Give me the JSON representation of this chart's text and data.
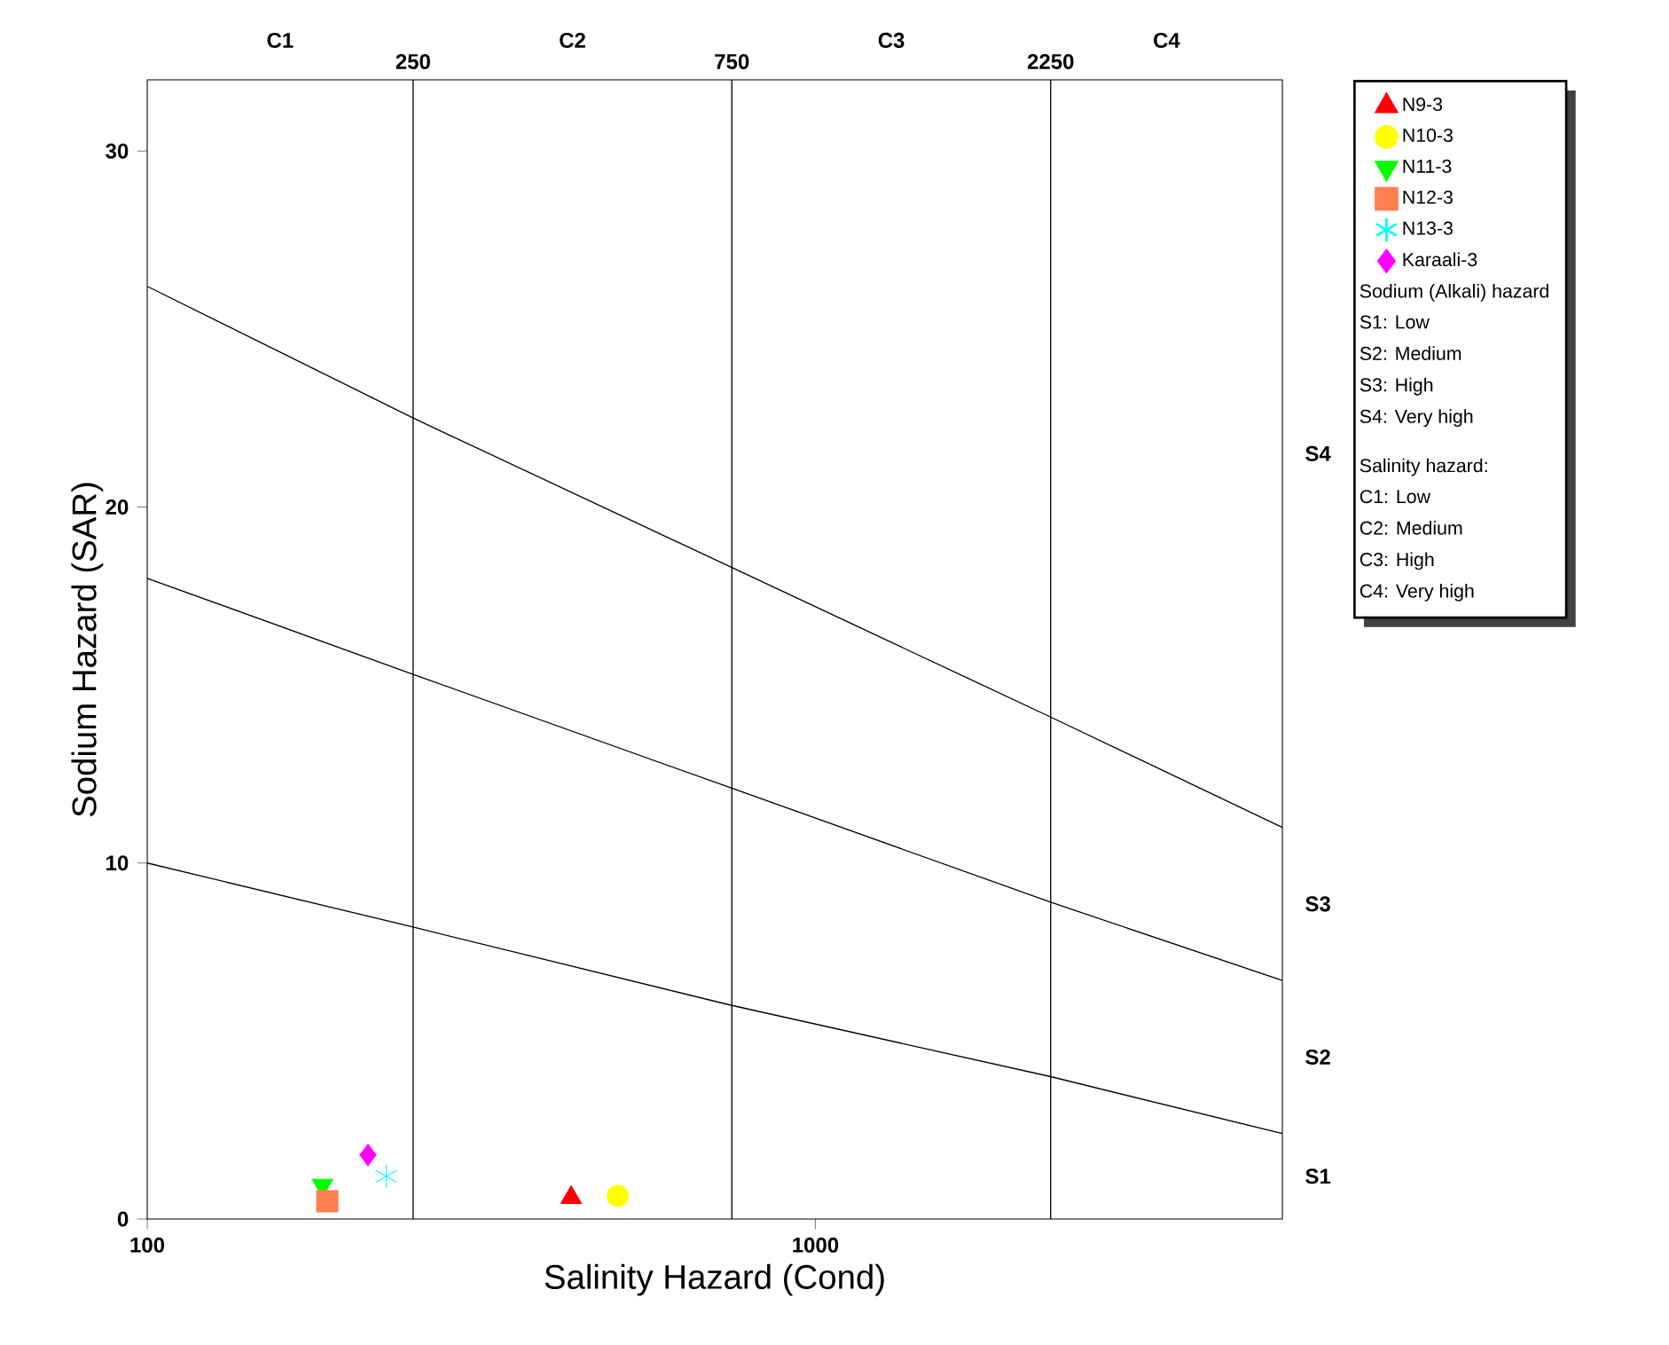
{
  "chart_data": {
    "type": "scatter",
    "xlabel": "Salinity Hazard (Cond)",
    "ylabel": "Sodium Hazard (SAR)",
    "log": "x",
    "xlim": [
      100,
      5000
    ],
    "xticks": [
      100,
      1000
    ],
    "ylim": [
      0,
      32
    ],
    "yticks": [
      0,
      10,
      20,
      30
    ],
    "legend": "top right",
    "grid": false,
    "ref_lines": [
      {
        "axis": "x",
        "value": 250,
        "label": "250",
        "color": "#000000"
      },
      {
        "axis": "x",
        "value": 750,
        "label": "750",
        "color": "#000000"
      },
      {
        "axis": "x",
        "value": 2250,
        "label": "2250",
        "color": "#000000"
      }
    ],
    "series": [
      {
        "type": "line",
        "color": "#000000",
        "x": [
          100,
          250,
          750,
          2250,
          5000
        ],
        "values": [
          26.2,
          22.5,
          18.3,
          14.1,
          11.0
        ]
      },
      {
        "type": "line",
        "color": "#000000",
        "x": [
          100,
          250,
          750,
          2250,
          5000
        ],
        "values": [
          18.0,
          15.3,
          12.1,
          8.9,
          6.7
        ]
      },
      {
        "type": "line",
        "color": "#000000",
        "x": [
          100,
          250,
          750,
          2250,
          5000
        ],
        "values": [
          10.0,
          8.2,
          6.0,
          4.0,
          2.4
        ]
      },
      {
        "name": "N9-3",
        "color": "#ff0000",
        "marker": "triangle",
        "x": [
          431
        ],
        "values": [
          0.6
        ]
      },
      {
        "name": "N10-3",
        "color": "#ffff00",
        "marker": "circle",
        "x": [
          506
        ],
        "values": [
          0.65
        ]
      },
      {
        "name": "N11-3",
        "color": "#00ff00",
        "marker": "triangle-down",
        "x": [
          183
        ],
        "values": [
          0.95
        ]
      },
      {
        "name": "N12-3",
        "color": "#ff7f50",
        "marker": "square",
        "x": [
          186
        ],
        "values": [
          0.5
        ]
      },
      {
        "name": "N13-3",
        "color": "#00ffff",
        "marker": "cross",
        "x": [
          228
        ],
        "values": [
          1.2
        ]
      },
      {
        "name": "Karaali-3",
        "color": "#ff00ff",
        "marker": "diamond",
        "x": [
          214
        ],
        "values": [
          1.8
        ]
      }
    ],
    "annotations": [
      "C1",
      "C2",
      "C3",
      "C4",
      "S1",
      "S2",
      "S3",
      "S4",
      "Sodium (Alkali) hazard",
      "S1: Low",
      "S2: Medium",
      "S3: High",
      "S4: Very high",
      "Salinity hazard:",
      "C1: Low",
      "C2: Medium",
      "C3: High",
      "C4: Very high"
    ]
  }
}
